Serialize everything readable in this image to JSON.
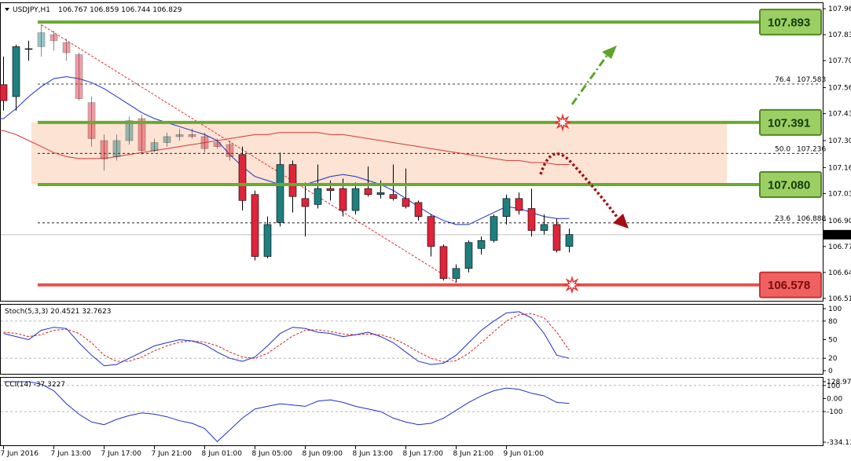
{
  "header": {
    "symbol": "USDJPY,H1",
    "ohlc": "106.767 106.859 106.744 106.829"
  },
  "panes": {
    "stoch_title": "Stoch(5,3,3) 20.4521 32.7623",
    "cci_title": "CCI(14) -37.3227"
  },
  "colors": {
    "bull_fill": "#1f7f7f",
    "bear_fill": "#e0243a",
    "level_green": "#6aaa2f",
    "level_red": "#e8504a",
    "tag_green_bg": "#9ccf63",
    "tag_red_bg": "#ef6161",
    "zone_fill": "#fbd9c4",
    "ma_blue": "#1f2fc8",
    "ma_red": "#d43a3a",
    "stoch_main": "#1f2fc8",
    "stoch_signal": "#d42020",
    "cci_line": "#1f2fc8"
  },
  "chart_data": {
    "type": "candlestick",
    "title": "USDJPY,H1",
    "price_axis": {
      "range": [
        106.51,
        107.98
      ],
      "ticks": [
        "107.960",
        "107.830",
        "107.700",
        "107.565",
        "107.435",
        "107.300",
        "107.165",
        "107.035",
        "106.900",
        "106.770",
        "106.640",
        "106.510"
      ],
      "current_price_label": "106.829",
      "current_price": 106.829
    },
    "time_axis": {
      "labels": [
        "7 Jun 2016",
        "7 Jun 13:00",
        "7 Jun 17:00",
        "7 Jun 21:00",
        "8 Jun 01:00",
        "8 Jun 05:00",
        "8 Jun 09:00",
        "8 Jun 13:00",
        "8 Jun 17:00",
        "8 Jun 21:00",
        "9 Jun 01:00"
      ],
      "label_bar_index": [
        0,
        4,
        8,
        12,
        16,
        20,
        24,
        28,
        32,
        36,
        40
      ]
    },
    "candles": [
      {
        "o": 107.58,
        "h": 107.72,
        "l": 107.45,
        "c": 107.5
      },
      {
        "o": 107.52,
        "h": 107.78,
        "l": 107.45,
        "c": 107.77
      },
      {
        "o": 107.76,
        "h": 107.8,
        "l": 107.7,
        "c": 107.76
      },
      {
        "o": 107.77,
        "h": 107.88,
        "l": 107.72,
        "c": 107.84
      },
      {
        "o": 107.83,
        "h": 107.85,
        "l": 107.75,
        "c": 107.8
      },
      {
        "o": 107.79,
        "h": 107.81,
        "l": 107.7,
        "c": 107.74
      },
      {
        "o": 107.73,
        "h": 107.74,
        "l": 107.5,
        "c": 107.51
      },
      {
        "o": 107.49,
        "h": 107.52,
        "l": 107.27,
        "c": 107.31
      },
      {
        "o": 107.3,
        "h": 107.33,
        "l": 107.15,
        "c": 107.21
      },
      {
        "o": 107.22,
        "h": 107.33,
        "l": 107.2,
        "c": 107.3
      },
      {
        "o": 107.3,
        "h": 107.42,
        "l": 107.28,
        "c": 107.4
      },
      {
        "o": 107.41,
        "h": 107.43,
        "l": 107.23,
        "c": 107.25
      },
      {
        "o": 107.25,
        "h": 107.31,
        "l": 107.24,
        "c": 107.29
      },
      {
        "o": 107.29,
        "h": 107.34,
        "l": 107.27,
        "c": 107.32
      },
      {
        "o": 107.32,
        "h": 107.36,
        "l": 107.3,
        "c": 107.33
      },
      {
        "o": 107.33,
        "h": 107.36,
        "l": 107.31,
        "c": 107.32
      },
      {
        "o": 107.32,
        "h": 107.34,
        "l": 107.24,
        "c": 107.26
      },
      {
        "o": 107.29,
        "h": 107.31,
        "l": 107.26,
        "c": 107.27
      },
      {
        "o": 107.28,
        "h": 107.3,
        "l": 107.2,
        "c": 107.22
      },
      {
        "o": 107.23,
        "h": 107.27,
        "l": 106.95,
        "c": 107.0
      },
      {
        "o": 107.03,
        "h": 107.05,
        "l": 106.7,
        "c": 106.72
      },
      {
        "o": 106.72,
        "h": 106.92,
        "l": 106.71,
        "c": 106.88
      },
      {
        "o": 106.89,
        "h": 107.24,
        "l": 106.87,
        "c": 107.18
      },
      {
        "o": 107.18,
        "h": 107.2,
        "l": 106.94,
        "c": 107.02
      },
      {
        "o": 107.01,
        "h": 107.09,
        "l": 106.82,
        "c": 106.97
      },
      {
        "o": 106.98,
        "h": 107.18,
        "l": 106.96,
        "c": 107.06
      },
      {
        "o": 107.06,
        "h": 107.1,
        "l": 107.0,
        "c": 107.05
      },
      {
        "o": 107.06,
        "h": 107.11,
        "l": 106.92,
        "c": 106.95
      },
      {
        "o": 106.95,
        "h": 107.09,
        "l": 106.93,
        "c": 107.06
      },
      {
        "o": 107.06,
        "h": 107.17,
        "l": 107.02,
        "c": 107.03
      },
      {
        "o": 107.03,
        "h": 107.1,
        "l": 107.01,
        "c": 107.04
      },
      {
        "o": 107.03,
        "h": 107.18,
        "l": 107.0,
        "c": 107.01
      },
      {
        "o": 107.01,
        "h": 107.16,
        "l": 106.96,
        "c": 106.97
      },
      {
        "o": 106.99,
        "h": 107.0,
        "l": 106.9,
        "c": 106.92
      },
      {
        "o": 106.92,
        "h": 106.93,
        "l": 106.72,
        "c": 106.77
      },
      {
        "o": 106.77,
        "h": 106.78,
        "l": 106.6,
        "c": 106.61
      },
      {
        "o": 106.61,
        "h": 106.68,
        "l": 106.59,
        "c": 106.66
      },
      {
        "o": 106.66,
        "h": 106.8,
        "l": 106.64,
        "c": 106.79
      },
      {
        "o": 106.76,
        "h": 106.82,
        "l": 106.73,
        "c": 106.8
      },
      {
        "o": 106.8,
        "h": 106.93,
        "l": 106.79,
        "c": 106.92
      },
      {
        "o": 106.92,
        "h": 107.03,
        "l": 106.88,
        "c": 107.01
      },
      {
        "o": 107.01,
        "h": 107.04,
        "l": 106.93,
        "c": 106.95
      },
      {
        "o": 106.96,
        "h": 107.06,
        "l": 106.82,
        "c": 106.85
      },
      {
        "o": 106.85,
        "h": 106.93,
        "l": 106.83,
        "c": 106.88
      },
      {
        "o": 106.88,
        "h": 106.91,
        "l": 106.74,
        "c": 106.75
      },
      {
        "o": 106.77,
        "h": 106.86,
        "l": 106.74,
        "c": 106.83
      }
    ],
    "candle_x_start": 4.5,
    "candle_x_step": 16.0,
    "ma_fast": [
      107.41,
      107.46,
      107.52,
      107.57,
      107.61,
      107.62,
      107.61,
      107.59,
      107.56,
      107.52,
      107.48,
      107.44,
      107.41,
      107.39,
      107.37,
      107.35,
      107.33,
      107.3,
      107.23,
      107.17,
      107.12,
      107.1,
      107.08,
      107.08,
      107.08,
      107.1,
      107.12,
      107.13,
      107.12,
      107.1,
      107.08,
      107.05,
      107.01,
      106.97,
      106.93,
      106.9,
      106.88,
      106.88,
      106.91,
      106.94,
      106.97,
      106.96,
      106.94,
      106.92,
      106.91,
      106.91
    ],
    "ma_slow": [
      107.35,
      107.33,
      107.3,
      107.27,
      107.24,
      107.22,
      107.21,
      107.21,
      107.21,
      107.22,
      107.23,
      107.24,
      107.25,
      107.26,
      107.27,
      107.28,
      107.29,
      107.3,
      107.31,
      107.32,
      107.33,
      107.33,
      107.34,
      107.34,
      107.34,
      107.34,
      107.33,
      107.33,
      107.32,
      107.31,
      107.3,
      107.29,
      107.28,
      107.27,
      107.26,
      107.25,
      107.24,
      107.23,
      107.22,
      107.21,
      107.2,
      107.2,
      107.19,
      107.19,
      107.18,
      107.18
    ],
    "levels": [
      {
        "label": "107.893",
        "value": 107.893,
        "kind": "resistance"
      },
      {
        "label": "107.391",
        "value": 107.391,
        "kind": "resistance"
      },
      {
        "label": "107.080",
        "value": 107.08,
        "kind": "support"
      },
      {
        "label": "106.578",
        "value": 106.578,
        "kind": "support"
      }
    ],
    "zone": {
      "from": 107.08,
      "to": 107.391
    },
    "fibonacci": [
      {
        "label": "76.4",
        "price": "107.583",
        "value": 107.583
      },
      {
        "label": "50.0",
        "price": "107.236",
        "value": 107.236
      },
      {
        "label": "23.6",
        "price": "106.888",
        "value": 106.888
      }
    ],
    "stochastic": {
      "title": "Stoch(5,3,3) 20.4521 32.7623",
      "range": [
        0,
        100
      ],
      "ticks": [
        "100",
        "80",
        "50",
        "20",
        "0"
      ],
      "main": [
        60,
        55,
        50,
        65,
        70,
        68,
        45,
        25,
        8,
        10,
        20,
        30,
        40,
        45,
        50,
        48,
        42,
        30,
        20,
        15,
        22,
        40,
        60,
        70,
        68,
        62,
        60,
        55,
        58,
        62,
        55,
        45,
        30,
        15,
        10,
        12,
        25,
        45,
        65,
        80,
        93,
        95,
        85,
        60,
        25,
        20
      ],
      "signal": [
        62,
        60,
        55,
        58,
        65,
        67,
        60,
        45,
        25,
        15,
        15,
        22,
        32,
        40,
        46,
        48,
        46,
        40,
        30,
        22,
        20,
        28,
        42,
        56,
        65,
        66,
        63,
        59,
        58,
        59,
        58,
        52,
        42,
        30,
        20,
        14,
        16,
        28,
        45,
        63,
        80,
        90,
        92,
        85,
        62,
        33
      ]
    },
    "cci": {
      "title": "CCI(14) -37.3227",
      "range": [
        -334.11,
        128.97
      ],
      "ticks": [
        "128.971",
        "100",
        "0.00",
        "-100",
        "-334.11"
      ],
      "values": [
        150,
        150,
        130,
        110,
        60,
        -40,
        -120,
        -180,
        -200,
        -160,
        -130,
        -110,
        -120,
        -140,
        -170,
        -190,
        -230,
        -330,
        -240,
        -150,
        -80,
        -60,
        -40,
        -50,
        -60,
        -20,
        -10,
        -30,
        -60,
        -80,
        -100,
        -150,
        -180,
        -200,
        -190,
        -150,
        -90,
        -30,
        20,
        60,
        80,
        70,
        40,
        20,
        -30,
        -37
      ]
    }
  }
}
